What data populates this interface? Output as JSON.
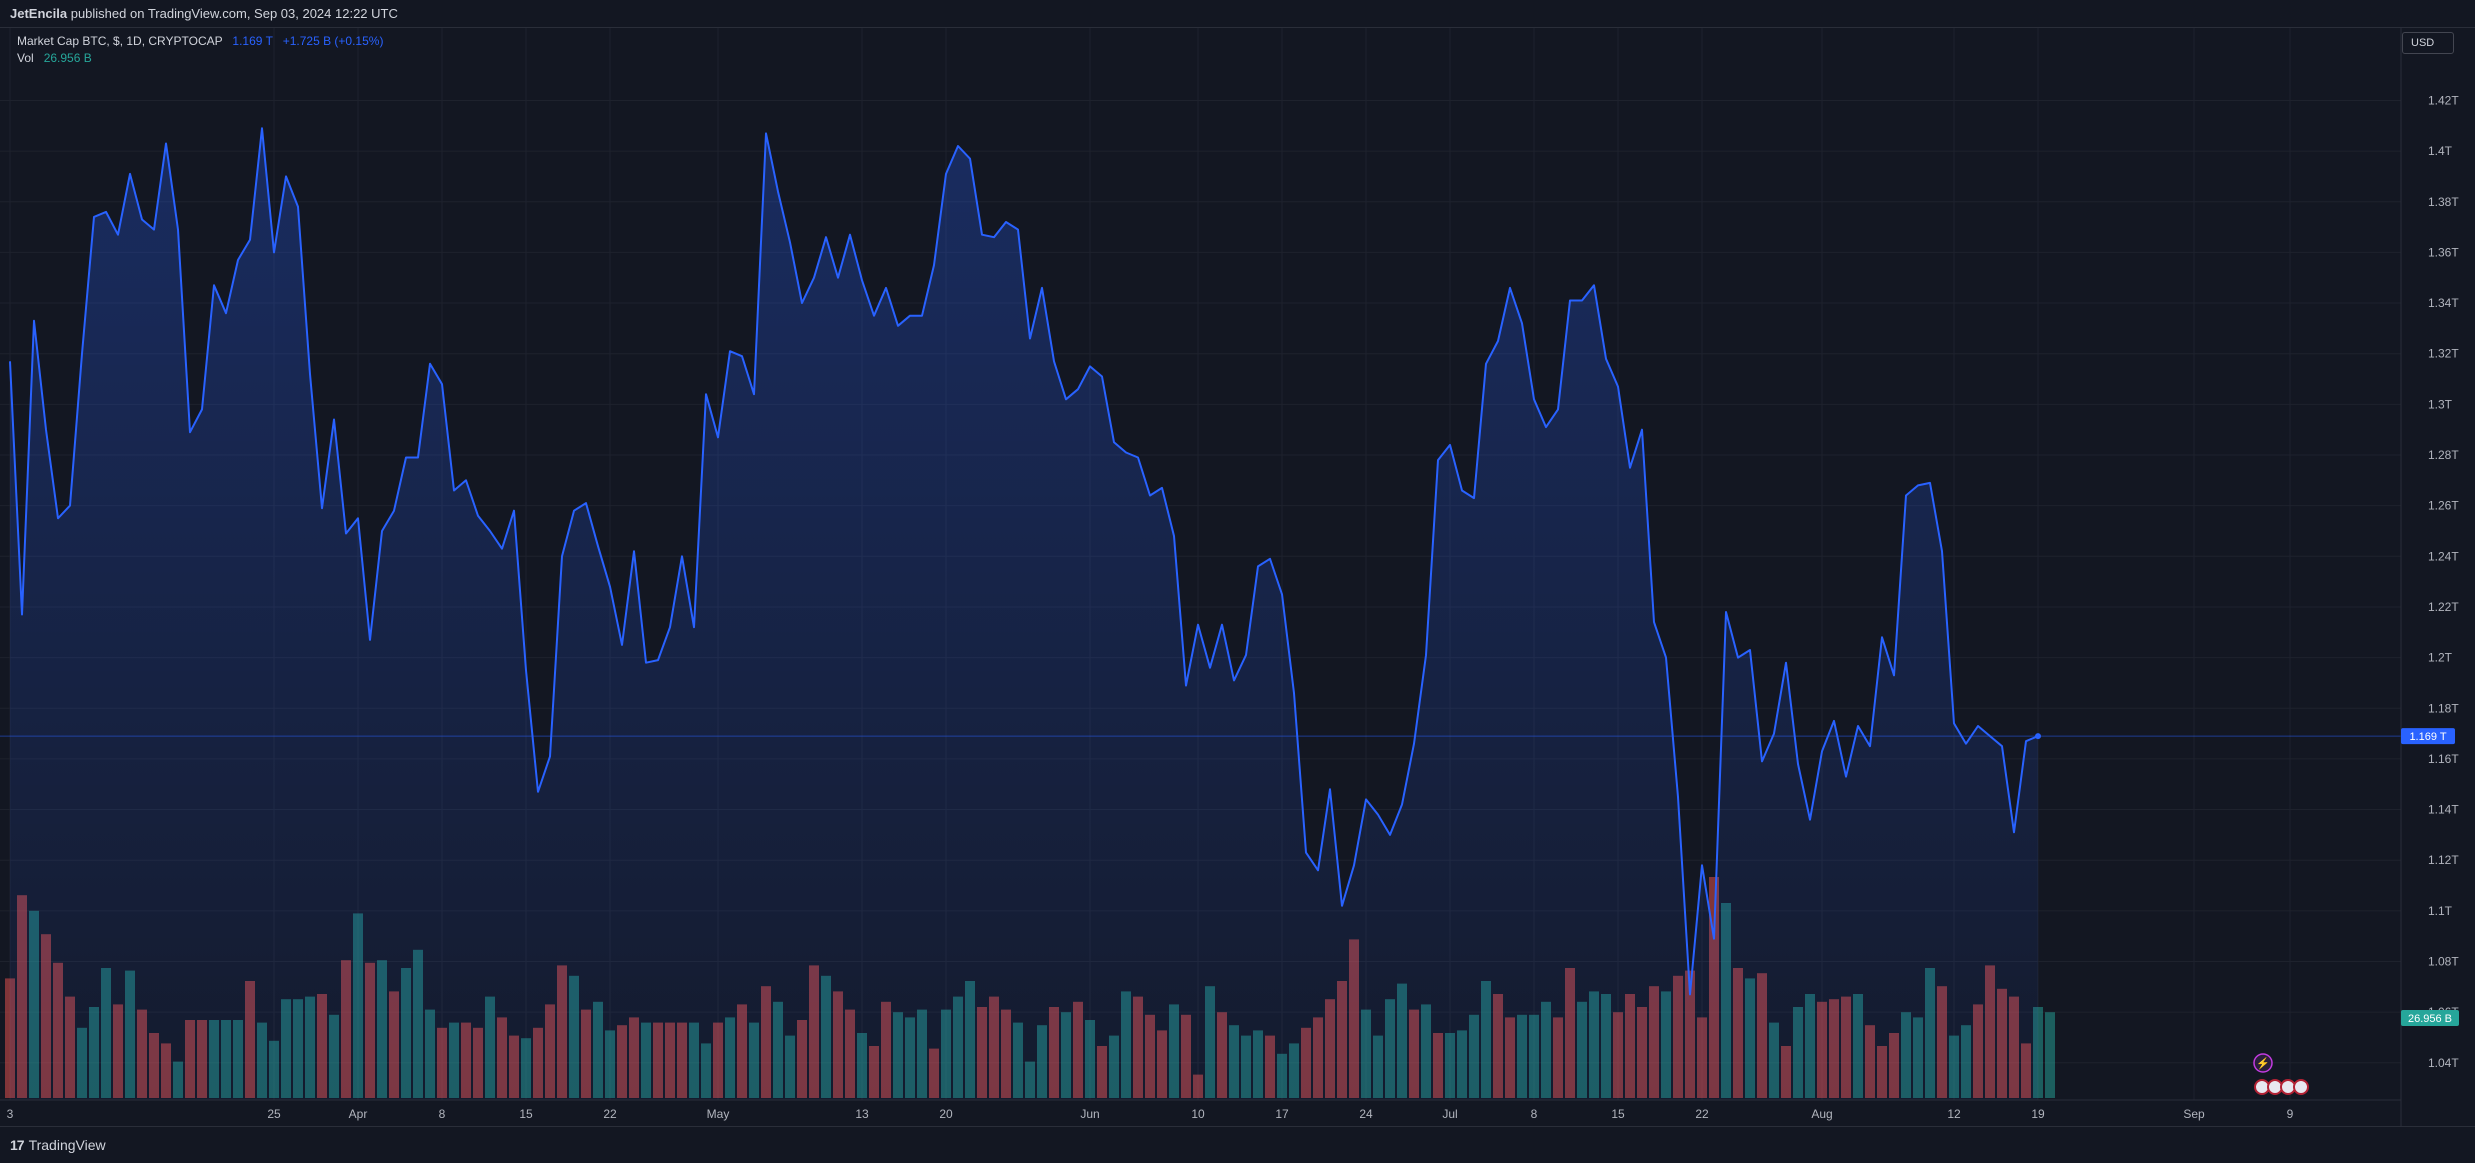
{
  "header": {
    "author": "JetEncila",
    "published_text": "published on TradingView.com, Sep 03, 2024 12:22 UTC"
  },
  "legend": {
    "symbol": "Market Cap BTC, $, 1D, CRYPTOCAP",
    "last": "1.169 T",
    "change": "+1.725 B (+0.15%)",
    "vol_label": "Vol",
    "vol_value": "26.956 B"
  },
  "currency_button": "USD",
  "price_badge": "1.169 T",
  "volume_badge": "26.956 B",
  "footer": {
    "brand": "TradingView",
    "logo_icon": "tradingview-logo-icon"
  },
  "colors": {
    "line": "#2962ff",
    "up_volume": "#26a69a",
    "down_volume": "#ef5350",
    "background": "#131722",
    "grid": "#1e222d"
  },
  "chart_data": {
    "type": "area",
    "title": "Market Cap BTC, $, 1D, CRYPTOCAP",
    "x_ticks": [
      "3",
      "25",
      "Apr",
      "8",
      "15",
      "22",
      "May",
      "13",
      "20",
      "Jun",
      "10",
      "17",
      "24",
      "Jul",
      "8",
      "15",
      "22",
      "Aug",
      "12",
      "19",
      "Sep",
      "9"
    ],
    "y_ticks": [
      "1.04T",
      "1.06T",
      "1.08T",
      "1.1T",
      "1.12T",
      "1.14T",
      "1.16T",
      "1.18T",
      "1.2T",
      "1.22T",
      "1.24T",
      "1.26T",
      "1.28T",
      "1.3T",
      "1.32T",
      "1.34T",
      "1.36T",
      "1.38T",
      "1.4T",
      "1.42T"
    ],
    "ylim": [
      1.03,
      1.43
    ],
    "y_unit": "T",
    "grid": true,
    "x_range": [
      "2024-03-03",
      "2024-09-12"
    ],
    "series": [
      {
        "values": [
          1.317,
          1.217,
          1.333,
          1.29,
          1.255,
          1.26,
          1.32,
          1.374,
          1.376,
          1.367,
          1.391,
          1.373,
          1.369,
          1.403,
          1.369,
          1.289,
          1.298,
          1.347,
          1.336,
          1.357,
          1.365,
          1.409,
          1.36,
          1.39,
          1.378,
          1.312,
          1.259,
          1.294,
          1.249,
          1.255,
          1.207,
          1.25,
          1.258,
          1.279,
          1.279,
          1.316,
          1.308,
          1.266,
          1.27,
          1.256,
          1.25,
          1.243,
          1.258,
          1.195,
          1.147,
          1.161,
          1.24,
          1.258,
          1.261,
          1.244,
          1.228,
          1.205,
          1.242,
          1.198,
          1.199,
          1.212,
          1.24,
          1.212,
          1.304,
          1.287,
          1.321,
          1.319,
          1.304,
          1.407,
          1.384,
          1.364,
          1.34,
          1.35,
          1.366,
          1.35,
          1.367,
          1.349,
          1.335,
          1.346,
          1.331,
          1.335,
          1.335,
          1.355,
          1.391,
          1.402,
          1.397,
          1.367,
          1.366,
          1.372,
          1.369,
          1.326,
          1.346,
          1.317,
          1.302,
          1.306,
          1.315,
          1.311,
          1.285,
          1.281,
          1.279,
          1.264,
          1.267,
          1.248,
          1.189,
          1.213,
          1.196,
          1.213,
          1.191,
          1.201,
          1.236,
          1.239,
          1.225,
          1.186,
          1.123,
          1.116,
          1.148,
          1.102,
          1.118,
          1.144,
          1.138,
          1.13,
          1.142,
          1.166,
          1.201,
          1.278,
          1.284,
          1.266,
          1.263,
          1.316,
          1.325,
          1.346,
          1.332,
          1.302,
          1.291,
          1.298,
          1.341,
          1.341,
          1.347,
          1.318,
          1.307,
          1.275,
          1.29,
          1.214,
          1.2,
          1.145,
          1.067,
          1.118,
          1.089,
          1.218,
          1.2,
          1.203,
          1.159,
          1.17,
          1.198,
          1.158,
          1.136,
          1.163,
          1.175,
          1.153,
          1.173,
          1.165,
          1.208,
          1.193,
          1.264,
          1.268,
          1.269,
          1.242,
          1.174,
          1.166,
          1.173,
          1.169,
          1.165,
          1.131,
          1.167,
          1.169
        ]
      }
    ],
    "volume": {
      "label": "Vol",
      "last": "26.956 B",
      "bars": [
        {
          "h": 0.46,
          "up": false
        },
        {
          "h": 0.78,
          "up": false
        },
        {
          "h": 0.72,
          "up": true
        },
        {
          "h": 0.63,
          "up": false
        },
        {
          "h": 0.52,
          "up": false
        },
        {
          "h": 0.39,
          "up": false
        },
        {
          "h": 0.27,
          "up": true
        },
        {
          "h": 0.35,
          "up": true
        },
        {
          "h": 0.5,
          "up": true
        },
        {
          "h": 0.36,
          "up": false
        },
        {
          "h": 0.49,
          "up": true
        },
        {
          "h": 0.34,
          "up": false
        },
        {
          "h": 0.25,
          "up": false
        },
        {
          "h": 0.21,
          "up": false
        },
        {
          "h": 0.14,
          "up": true
        },
        {
          "h": 0.3,
          "up": false
        },
        {
          "h": 0.3,
          "up": false
        },
        {
          "h": 0.3,
          "up": true
        },
        {
          "h": 0.3,
          "up": true
        },
        {
          "h": 0.3,
          "up": true
        },
        {
          "h": 0.45,
          "up": false
        },
        {
          "h": 0.29,
          "up": true
        },
        {
          "h": 0.22,
          "up": true
        },
        {
          "h": 0.38,
          "up": true
        },
        {
          "h": 0.38,
          "up": true
        },
        {
          "h": 0.39,
          "up": true
        },
        {
          "h": 0.4,
          "up": false
        },
        {
          "h": 0.32,
          "up": true
        },
        {
          "h": 0.53,
          "up": false
        },
        {
          "h": 0.71,
          "up": true
        },
        {
          "h": 0.52,
          "up": false
        },
        {
          "h": 0.53,
          "up": true
        },
        {
          "h": 0.41,
          "up": false
        },
        {
          "h": 0.5,
          "up": true
        },
        {
          "h": 0.57,
          "up": true
        },
        {
          "h": 0.34,
          "up": true
        },
        {
          "h": 0.27,
          "up": false
        },
        {
          "h": 0.29,
          "up": true
        },
        {
          "h": 0.29,
          "up": false
        },
        {
          "h": 0.27,
          "up": false
        },
        {
          "h": 0.39,
          "up": true
        },
        {
          "h": 0.31,
          "up": false
        },
        {
          "h": 0.24,
          "up": false
        },
        {
          "h": 0.23,
          "up": true
        },
        {
          "h": 0.27,
          "up": false
        },
        {
          "h": 0.36,
          "up": false
        },
        {
          "h": 0.51,
          "up": false
        },
        {
          "h": 0.47,
          "up": true
        },
        {
          "h": 0.34,
          "up": false
        },
        {
          "h": 0.37,
          "up": true
        },
        {
          "h": 0.26,
          "up": true
        },
        {
          "h": 0.28,
          "up": false
        },
        {
          "h": 0.31,
          "up": false
        },
        {
          "h": 0.29,
          "up": true
        },
        {
          "h": 0.29,
          "up": false
        },
        {
          "h": 0.29,
          "up": false
        },
        {
          "h": 0.29,
          "up": false
        },
        {
          "h": 0.29,
          "up": true
        },
        {
          "h": 0.21,
          "up": true
        },
        {
          "h": 0.29,
          "up": false
        },
        {
          "h": 0.31,
          "up": true
        },
        {
          "h": 0.36,
          "up": false
        },
        {
          "h": 0.29,
          "up": true
        },
        {
          "h": 0.43,
          "up": false
        },
        {
          "h": 0.37,
          "up": true
        },
        {
          "h": 0.24,
          "up": true
        },
        {
          "h": 0.3,
          "up": false
        },
        {
          "h": 0.51,
          "up": false
        },
        {
          "h": 0.47,
          "up": true
        },
        {
          "h": 0.41,
          "up": false
        },
        {
          "h": 0.34,
          "up": false
        },
        {
          "h": 0.25,
          "up": true
        },
        {
          "h": 0.2,
          "up": false
        },
        {
          "h": 0.37,
          "up": false
        },
        {
          "h": 0.33,
          "up": true
        },
        {
          "h": 0.31,
          "up": true
        },
        {
          "h": 0.34,
          "up": true
        },
        {
          "h": 0.19,
          "up": false
        },
        {
          "h": 0.34,
          "up": true
        },
        {
          "h": 0.39,
          "up": true
        },
        {
          "h": 0.45,
          "up": true
        },
        {
          "h": 0.35,
          "up": false
        },
        {
          "h": 0.39,
          "up": false
        },
        {
          "h": 0.34,
          "up": false
        },
        {
          "h": 0.29,
          "up": true
        },
        {
          "h": 0.14,
          "up": true
        },
        {
          "h": 0.28,
          "up": true
        },
        {
          "h": 0.35,
          "up": false
        },
        {
          "h": 0.33,
          "up": true
        },
        {
          "h": 0.37,
          "up": false
        },
        {
          "h": 0.3,
          "up": true
        },
        {
          "h": 0.2,
          "up": false
        },
        {
          "h": 0.24,
          "up": true
        },
        {
          "h": 0.41,
          "up": true
        },
        {
          "h": 0.39,
          "up": false
        },
        {
          "h": 0.32,
          "up": false
        },
        {
          "h": 0.26,
          "up": false
        },
        {
          "h": 0.36,
          "up": true
        },
        {
          "h": 0.32,
          "up": false
        },
        {
          "h": 0.09,
          "up": false
        },
        {
          "h": 0.43,
          "up": true
        },
        {
          "h": 0.33,
          "up": false
        },
        {
          "h": 0.28,
          "up": true
        },
        {
          "h": 0.24,
          "up": true
        },
        {
          "h": 0.26,
          "up": true
        },
        {
          "h": 0.24,
          "up": false
        },
        {
          "h": 0.17,
          "up": true
        },
        {
          "h": 0.21,
          "up": true
        },
        {
          "h": 0.27,
          "up": false
        },
        {
          "h": 0.31,
          "up": false
        },
        {
          "h": 0.38,
          "up": false
        },
        {
          "h": 0.45,
          "up": false
        },
        {
          "h": 0.61,
          "up": false
        },
        {
          "h": 0.34,
          "up": true
        },
        {
          "h": 0.24,
          "up": true
        },
        {
          "h": 0.38,
          "up": true
        },
        {
          "h": 0.44,
          "up": true
        },
        {
          "h": 0.34,
          "up": false
        },
        {
          "h": 0.36,
          "up": true
        },
        {
          "h": 0.25,
          "up": false
        },
        {
          "h": 0.25,
          "up": true
        },
        {
          "h": 0.26,
          "up": true
        },
        {
          "h": 0.32,
          "up": true
        },
        {
          "h": 0.45,
          "up": true
        },
        {
          "h": 0.4,
          "up": false
        },
        {
          "h": 0.31,
          "up": false
        },
        {
          "h": 0.32,
          "up": true
        },
        {
          "h": 0.32,
          "up": true
        },
        {
          "h": 0.37,
          "up": true
        },
        {
          "h": 0.31,
          "up": false
        },
        {
          "h": 0.5,
          "up": false
        },
        {
          "h": 0.37,
          "up": true
        },
        {
          "h": 0.41,
          "up": true
        },
        {
          "h": 0.4,
          "up": true
        },
        {
          "h": 0.33,
          "up": false
        },
        {
          "h": 0.4,
          "up": false
        },
        {
          "h": 0.35,
          "up": false
        },
        {
          "h": 0.43,
          "up": false
        },
        {
          "h": 0.41,
          "up": true
        },
        {
          "h": 0.47,
          "up": false
        },
        {
          "h": 0.49,
          "up": false
        },
        {
          "h": 0.31,
          "up": false
        },
        {
          "h": 0.85,
          "up": false
        },
        {
          "h": 0.75,
          "up": true
        },
        {
          "h": 0.5,
          "up": false
        },
        {
          "h": 0.46,
          "up": true
        },
        {
          "h": 0.48,
          "up": false
        },
        {
          "h": 0.29,
          "up": true
        },
        {
          "h": 0.2,
          "up": false
        },
        {
          "h": 0.35,
          "up": true
        },
        {
          "h": 0.4,
          "up": true
        },
        {
          "h": 0.37,
          "up": false
        },
        {
          "h": 0.38,
          "up": false
        },
        {
          "h": 0.39,
          "up": false
        },
        {
          "h": 0.4,
          "up": true
        },
        {
          "h": 0.28,
          "up": false
        },
        {
          "h": 0.2,
          "up": false
        },
        {
          "h": 0.25,
          "up": false
        },
        {
          "h": 0.33,
          "up": true
        },
        {
          "h": 0.31,
          "up": true
        },
        {
          "h": 0.5,
          "up": true
        },
        {
          "h": 0.43,
          "up": false
        },
        {
          "h": 0.24,
          "up": true
        },
        {
          "h": 0.28,
          "up": true
        },
        {
          "h": 0.36,
          "up": false
        },
        {
          "h": 0.51,
          "up": false
        },
        {
          "h": 0.42,
          "up": false
        },
        {
          "h": 0.39,
          "up": false
        },
        {
          "h": 0.21,
          "up": false
        },
        {
          "h": 0.35,
          "up": true
        },
        {
          "h": 0.33,
          "up": true
        }
      ]
    }
  }
}
